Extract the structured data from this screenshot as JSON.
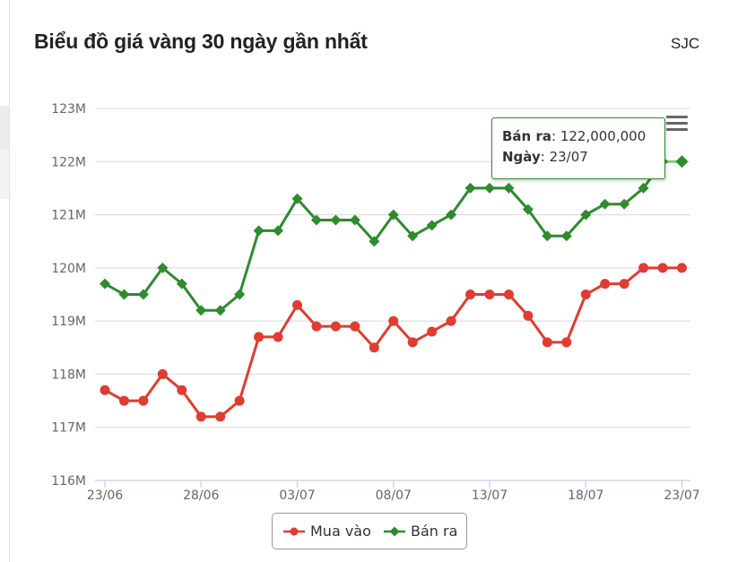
{
  "header": {
    "title": "Biểu đồ giá vàng 30 ngày gần nhất",
    "brand": "SJC"
  },
  "tooltip": {
    "series_label": "Bán ra",
    "value": "122,000,000",
    "date_label": "Ngày",
    "date": "23/07"
  },
  "colors": {
    "mua_vao": "#e03c31",
    "ban_ra": "#2e8b2e",
    "grid": "#d8d8d8",
    "axis": "#ccd6eb"
  },
  "chart_data": {
    "type": "line",
    "title": "Biểu đồ giá vàng 30 ngày gần nhất",
    "x": [
      "23/06",
      "24/06",
      "25/06",
      "26/06",
      "27/06",
      "28/06",
      "29/06",
      "30/06",
      "01/07",
      "02/07",
      "03/07",
      "04/07",
      "05/07",
      "06/07",
      "07/07",
      "08/07",
      "09/07",
      "10/07",
      "11/07",
      "12/07",
      "13/07",
      "14/07",
      "15/07",
      "16/07",
      "17/07",
      "18/07",
      "19/07",
      "20/07",
      "21/07",
      "22/07",
      "23/07"
    ],
    "x_tick_labels": [
      "23/06",
      "28/06",
      "03/07",
      "08/07",
      "13/07",
      "18/07",
      "23/07"
    ],
    "y_tick_labels": [
      "116M",
      "117M",
      "118M",
      "119M",
      "120M",
      "121M",
      "122M",
      "123M"
    ],
    "ylim": [
      116000000,
      123000000
    ],
    "grid": true,
    "legend_position": "bottom-center",
    "series": [
      {
        "name": "Mua vào",
        "marker": "circle",
        "values": [
          117700000,
          117500000,
          117500000,
          118000000,
          117700000,
          117200000,
          117200000,
          117500000,
          118700000,
          118700000,
          119300000,
          118900000,
          118900000,
          118900000,
          118500000,
          119000000,
          118600000,
          118800000,
          119000000,
          119500000,
          119500000,
          119500000,
          119100000,
          118600000,
          118600000,
          119500000,
          119700000,
          119700000,
          120000000,
          120000000,
          120000000
        ]
      },
      {
        "name": "Bán ra",
        "marker": "diamond",
        "values": [
          119700000,
          119500000,
          119500000,
          120000000,
          119700000,
          119200000,
          119200000,
          119500000,
          120700000,
          120700000,
          121300000,
          120900000,
          120900000,
          120900000,
          120500000,
          121000000,
          120600000,
          120800000,
          121000000,
          121500000,
          121500000,
          121500000,
          121100000,
          120600000,
          120600000,
          121000000,
          121200000,
          121200000,
          121500000,
          122000000,
          122000000
        ]
      }
    ]
  }
}
